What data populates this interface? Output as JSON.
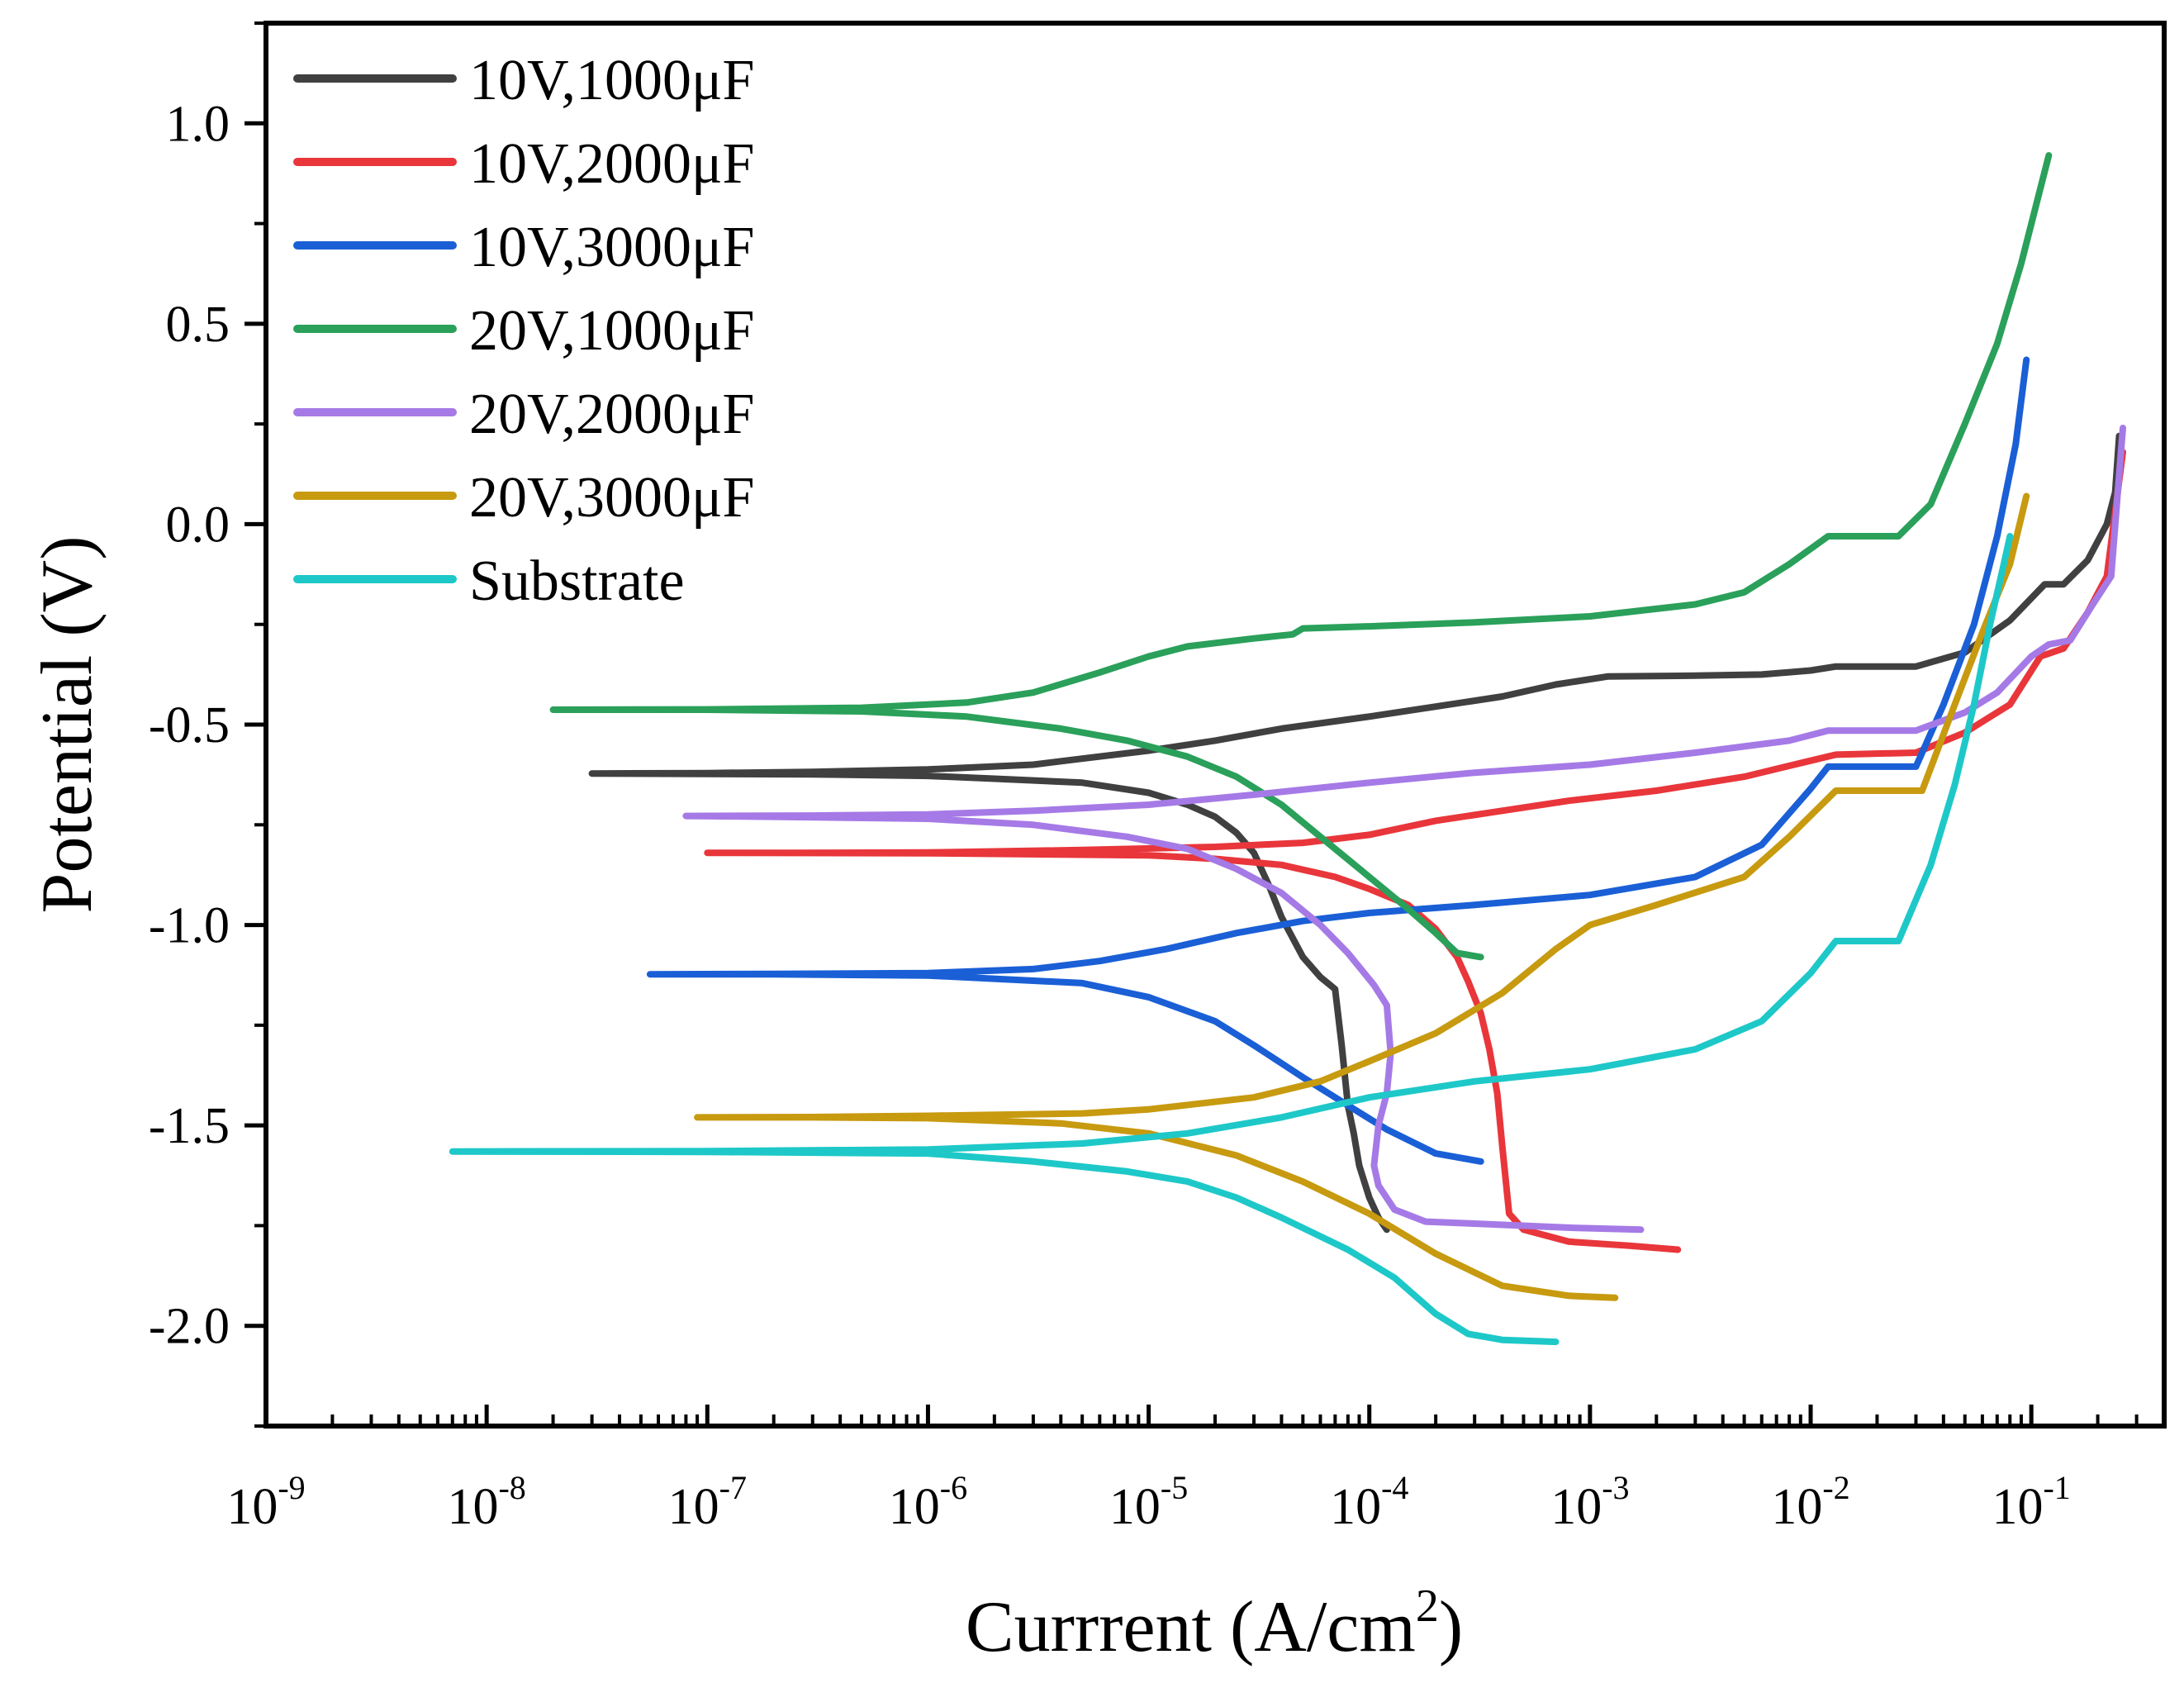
{
  "chart_data": {
    "type": "line",
    "xlabel": "Currrent (A/cm",
    "xlabel_sup": "2",
    "xlabel_suffix": ")",
    "ylabel": "Potential (V)",
    "xscale": "log",
    "xlim": [
      1e-09,
      0.4
    ],
    "ylim": [
      -2.25,
      1.25
    ],
    "grid": false,
    "legend_position": "top-left",
    "x_ticks": [
      {
        "value": 1e-09,
        "base": "10",
        "exp": "-9"
      },
      {
        "value": 1e-08,
        "base": "10",
        "exp": "-8"
      },
      {
        "value": 1e-07,
        "base": "10",
        "exp": "-7"
      },
      {
        "value": 1e-06,
        "base": "10",
        "exp": "-6"
      },
      {
        "value": 1e-05,
        "base": "10",
        "exp": "-5"
      },
      {
        "value": 0.0001,
        "base": "10",
        "exp": "-4"
      },
      {
        "value": 0.001,
        "base": "10",
        "exp": "-3"
      },
      {
        "value": 0.01,
        "base": "10",
        "exp": "-2"
      },
      {
        "value": 0.1,
        "base": "10",
        "exp": "-1"
      }
    ],
    "y_ticks": [
      {
        "value": 1.0,
        "label": "1.0"
      },
      {
        "value": 0.5,
        "label": "0.5"
      },
      {
        "value": 0.0,
        "label": "0.0"
      },
      {
        "value": -0.5,
        "label": "-0.5"
      },
      {
        "value": -1.0,
        "label": "-1.0"
      },
      {
        "value": -1.5,
        "label": "-1.5"
      },
      {
        "value": -2.0,
        "label": "-2.0"
      }
    ],
    "series": [
      {
        "name": "10V,1000μF",
        "color": "#404040",
        "points": [
          [
            0.00012,
            -1.76
          ],
          [
            0.00011,
            -1.73
          ],
          [
            0.0001,
            -1.68
          ],
          [
            9e-05,
            -1.6
          ],
          [
            8.5e-05,
            -1.52
          ],
          [
            8e-05,
            -1.45
          ],
          [
            7.5e-05,
            -1.3
          ],
          [
            7e-05,
            -1.16
          ],
          [
            6e-05,
            -1.13
          ],
          [
            5e-05,
            -1.08
          ],
          [
            4e-05,
            -0.98
          ],
          [
            3.5e-05,
            -0.9
          ],
          [
            3e-05,
            -0.82
          ],
          [
            2.5e-05,
            -0.77
          ],
          [
            2e-05,
            -0.73
          ],
          [
            1.5e-05,
            -0.7
          ],
          [
            1e-05,
            -0.67
          ],
          [
            5e-06,
            -0.645
          ],
          [
            2e-06,
            -0.635
          ],
          [
            1e-06,
            -0.628
          ],
          [
            3e-07,
            -0.624
          ],
          [
            1e-07,
            -0.623
          ],
          [
            3e-08,
            -0.622
          ],
          [
            1e-07,
            -0.621
          ],
          [
            3e-07,
            -0.618
          ],
          [
            1e-06,
            -0.612
          ],
          [
            3e-06,
            -0.6
          ],
          [
            5e-06,
            -0.585
          ],
          [
            1e-05,
            -0.565
          ],
          [
            2e-05,
            -0.54
          ],
          [
            4e-05,
            -0.51
          ],
          [
            0.0001,
            -0.48
          ],
          [
            0.0002,
            -0.455
          ],
          [
            0.0004,
            -0.43
          ],
          [
            0.0007,
            -0.4
          ],
          [
            0.0012,
            -0.38
          ],
          [
            0.003,
            -0.378
          ],
          [
            0.006,
            -0.375
          ],
          [
            0.01,
            -0.365
          ],
          [
            0.013,
            -0.355
          ],
          [
            0.03,
            -0.355
          ],
          [
            0.05,
            -0.32
          ],
          [
            0.08,
            -0.24
          ],
          [
            0.115,
            -0.15
          ],
          [
            0.14,
            -0.15
          ],
          [
            0.18,
            -0.09
          ],
          [
            0.22,
            0.0
          ],
          [
            0.24,
            0.08
          ],
          [
            0.25,
            0.22
          ]
        ]
      },
      {
        "name": "10V,2000μF",
        "color": "#e8363b",
        "points": [
          [
            0.0025,
            -1.81
          ],
          [
            0.0015,
            -1.8
          ],
          [
            0.0008,
            -1.79
          ],
          [
            0.0005,
            -1.76
          ],
          [
            0.00043,
            -1.72
          ],
          [
            0.0004,
            -1.55
          ],
          [
            0.00038,
            -1.42
          ],
          [
            0.00035,
            -1.31
          ],
          [
            0.00032,
            -1.22
          ],
          [
            0.00028,
            -1.14
          ],
          [
            0.00025,
            -1.08
          ],
          [
            0.0002,
            -1.01
          ],
          [
            0.00015,
            -0.95
          ],
          [
            0.0001,
            -0.91
          ],
          [
            7e-05,
            -0.88
          ],
          [
            4e-05,
            -0.85
          ],
          [
            2e-05,
            -0.835
          ],
          [
            1e-05,
            -0.826
          ],
          [
            1e-06,
            -0.821
          ],
          [
            1e-07,
            -0.82
          ],
          [
            2.5e-07,
            -0.82
          ],
          [
            1e-06,
            -0.819
          ],
          [
            5e-06,
            -0.813
          ],
          [
            2e-05,
            -0.805
          ],
          [
            5e-05,
            -0.795
          ],
          [
            0.0001,
            -0.775
          ],
          [
            0.0002,
            -0.74
          ],
          [
            0.0004,
            -0.715
          ],
          [
            0.0008,
            -0.69
          ],
          [
            0.002,
            -0.665
          ],
          [
            0.005,
            -0.63
          ],
          [
            0.01,
            -0.59
          ],
          [
            0.013,
            -0.575
          ],
          [
            0.03,
            -0.57
          ],
          [
            0.05,
            -0.52
          ],
          [
            0.08,
            -0.45
          ],
          [
            0.11,
            -0.33
          ],
          [
            0.14,
            -0.31
          ],
          [
            0.18,
            -0.22
          ],
          [
            0.22,
            -0.13
          ],
          [
            0.26,
            0.18
          ]
        ]
      },
      {
        "name": "10V,3000μF",
        "color": "#1a5fd6",
        "points": [
          [
            0.00032,
            -1.59
          ],
          [
            0.0002,
            -1.57
          ],
          [
            0.00012,
            -1.51
          ],
          [
            8e-05,
            -1.45
          ],
          [
            5e-05,
            -1.38
          ],
          [
            3e-05,
            -1.3
          ],
          [
            2e-05,
            -1.24
          ],
          [
            1e-05,
            -1.18
          ],
          [
            5e-06,
            -1.145
          ],
          [
            1e-06,
            -1.126
          ],
          [
            2e-07,
            -1.123
          ],
          [
            5.5e-08,
            -1.123
          ],
          [
            2e-07,
            -1.122
          ],
          [
            1e-06,
            -1.12
          ],
          [
            3e-06,
            -1.11
          ],
          [
            6e-06,
            -1.09
          ],
          [
            1.2e-05,
            -1.06
          ],
          [
            2.5e-05,
            -1.02
          ],
          [
            5e-05,
            -0.99
          ],
          [
            0.0001,
            -0.97
          ],
          [
            0.0003,
            -0.95
          ],
          [
            0.001,
            -0.925
          ],
          [
            0.003,
            -0.88
          ],
          [
            0.006,
            -0.8
          ],
          [
            0.01,
            -0.66
          ],
          [
            0.012,
            -0.605
          ],
          [
            0.03,
            -0.605
          ],
          [
            0.04,
            -0.45
          ],
          [
            0.055,
            -0.25
          ],
          [
            0.07,
            -0.03
          ],
          [
            0.085,
            0.2
          ],
          [
            0.095,
            0.41
          ]
        ]
      },
      {
        "name": "20V,1000μF",
        "color": "#2aa05a",
        "points": [
          [
            0.00032,
            -1.08
          ],
          [
            0.00025,
            -1.07
          ],
          [
            0.0002,
            -1.02
          ],
          [
            0.00015,
            -0.96
          ],
          [
            0.0001,
            -0.88
          ],
          [
            7e-05,
            -0.81
          ],
          [
            4e-05,
            -0.7
          ],
          [
            2.5e-05,
            -0.63
          ],
          [
            1.5e-05,
            -0.58
          ],
          [
            8e-06,
            -0.54
          ],
          [
            4e-06,
            -0.51
          ],
          [
            1.5e-06,
            -0.48
          ],
          [
            5e-07,
            -0.467
          ],
          [
            1e-07,
            -0.463
          ],
          [
            2e-08,
            -0.463
          ],
          [
            1e-07,
            -0.462
          ],
          [
            5e-07,
            -0.458
          ],
          [
            1.5e-06,
            -0.445
          ],
          [
            3e-06,
            -0.42
          ],
          [
            6e-06,
            -0.37
          ],
          [
            1e-05,
            -0.33
          ],
          [
            1.5e-05,
            -0.305
          ],
          [
            3e-05,
            -0.285
          ],
          [
            4.5e-05,
            -0.275
          ],
          [
            5e-05,
            -0.26
          ],
          [
            0.0001,
            -0.255
          ],
          [
            0.0003,
            -0.245
          ],
          [
            0.001,
            -0.23
          ],
          [
            0.003,
            -0.2
          ],
          [
            0.005,
            -0.17
          ],
          [
            0.008,
            -0.1
          ],
          [
            0.012,
            -0.03
          ],
          [
            0.025,
            -0.03
          ],
          [
            0.035,
            0.05
          ],
          [
            0.05,
            0.25
          ],
          [
            0.07,
            0.45
          ],
          [
            0.09,
            0.65
          ],
          [
            0.12,
            0.92
          ]
        ]
      },
      {
        "name": "20V,2000μF",
        "color": "#a57ae6",
        "points": [
          [
            0.0017,
            -1.76
          ],
          [
            0.0008,
            -1.755
          ],
          [
            0.0003,
            -1.745
          ],
          [
            0.00018,
            -1.74
          ],
          [
            0.00013,
            -1.71
          ],
          [
            0.00011,
            -1.65
          ],
          [
            0.000105,
            -1.6
          ],
          [
            0.00011,
            -1.5
          ],
          [
            0.00012,
            -1.42
          ],
          [
            0.000125,
            -1.32
          ],
          [
            0.00012,
            -1.2
          ],
          [
            0.000105,
            -1.15
          ],
          [
            8e-05,
            -1.07
          ],
          [
            6e-05,
            -1.0
          ],
          [
            4e-05,
            -0.92
          ],
          [
            2.5e-05,
            -0.86
          ],
          [
            1.5e-05,
            -0.81
          ],
          [
            8e-06,
            -0.78
          ],
          [
            3e-06,
            -0.75
          ],
          [
            1e-06,
            -0.735
          ],
          [
            2e-07,
            -0.73
          ],
          [
            8e-08,
            -0.728
          ],
          [
            3e-07,
            -0.727
          ],
          [
            1e-06,
            -0.724
          ],
          [
            3e-06,
            -0.715
          ],
          [
            1e-05,
            -0.7
          ],
          [
            3e-05,
            -0.675
          ],
          [
            0.0001,
            -0.645
          ],
          [
            0.0003,
            -0.62
          ],
          [
            0.001,
            -0.6
          ],
          [
            0.003,
            -0.57
          ],
          [
            0.008,
            -0.54
          ],
          [
            0.012,
            -0.515
          ],
          [
            0.03,
            -0.515
          ],
          [
            0.05,
            -0.47
          ],
          [
            0.07,
            -0.42
          ],
          [
            0.1,
            -0.33
          ],
          [
            0.12,
            -0.3
          ],
          [
            0.15,
            -0.29
          ],
          [
            0.19,
            -0.2
          ],
          [
            0.23,
            -0.13
          ],
          [
            0.26,
            0.24
          ]
        ]
      },
      {
        "name": "20V,3000μF",
        "color": "#c79a10",
        "points": [
          [
            0.0013,
            -1.93
          ],
          [
            0.0008,
            -1.925
          ],
          [
            0.0004,
            -1.9
          ],
          [
            0.0002,
            -1.82
          ],
          [
            0.0001,
            -1.72
          ],
          [
            5e-05,
            -1.64
          ],
          [
            2.5e-05,
            -1.575
          ],
          [
            1e-05,
            -1.52
          ],
          [
            4e-06,
            -1.495
          ],
          [
            1e-06,
            -1.482
          ],
          [
            3e-07,
            -1.48
          ],
          [
            9e-08,
            -1.48
          ],
          [
            3e-07,
            -1.479
          ],
          [
            1e-06,
            -1.476
          ],
          [
            5e-06,
            -1.47
          ],
          [
            1e-05,
            -1.46
          ],
          [
            3e-05,
            -1.43
          ],
          [
            6e-05,
            -1.39
          ],
          [
            0.0001,
            -1.34
          ],
          [
            0.0002,
            -1.27
          ],
          [
            0.0004,
            -1.17
          ],
          [
            0.0007,
            -1.06
          ],
          [
            0.001,
            -1.0
          ],
          [
            0.002,
            -0.95
          ],
          [
            0.005,
            -0.88
          ],
          [
            0.008,
            -0.78
          ],
          [
            0.013,
            -0.665
          ],
          [
            0.032,
            -0.665
          ],
          [
            0.045,
            -0.45
          ],
          [
            0.06,
            -0.27
          ],
          [
            0.08,
            -0.1
          ],
          [
            0.095,
            0.07
          ]
        ]
      },
      {
        "name": "Substrate",
        "color": "#1ec8c8",
        "points": [
          [
            0.0007,
            -2.04
          ],
          [
            0.0004,
            -2.035
          ],
          [
            0.00028,
            -2.02
          ],
          [
            0.0002,
            -1.97
          ],
          [
            0.00013,
            -1.88
          ],
          [
            8e-05,
            -1.81
          ],
          [
            4e-05,
            -1.73
          ],
          [
            2.5e-05,
            -1.68
          ],
          [
            1.5e-05,
            -1.64
          ],
          [
            8e-06,
            -1.615
          ],
          [
            3e-06,
            -1.59
          ],
          [
            1e-06,
            -1.57
          ],
          [
            1e-07,
            -1.566
          ],
          [
            7e-09,
            -1.565
          ],
          [
            1e-07,
            -1.564
          ],
          [
            1e-06,
            -1.56
          ],
          [
            5e-06,
            -1.545
          ],
          [
            1.5e-05,
            -1.52
          ],
          [
            4e-05,
            -1.48
          ],
          [
            0.0001,
            -1.43
          ],
          [
            0.0003,
            -1.39
          ],
          [
            0.001,
            -1.36
          ],
          [
            0.003,
            -1.31
          ],
          [
            0.006,
            -1.24
          ],
          [
            0.01,
            -1.12
          ],
          [
            0.013,
            -1.04
          ],
          [
            0.025,
            -1.04
          ],
          [
            0.035,
            -0.85
          ],
          [
            0.045,
            -0.65
          ],
          [
            0.055,
            -0.45
          ],
          [
            0.065,
            -0.25
          ],
          [
            0.075,
            -0.1
          ],
          [
            0.08,
            -0.03
          ]
        ]
      }
    ]
  }
}
